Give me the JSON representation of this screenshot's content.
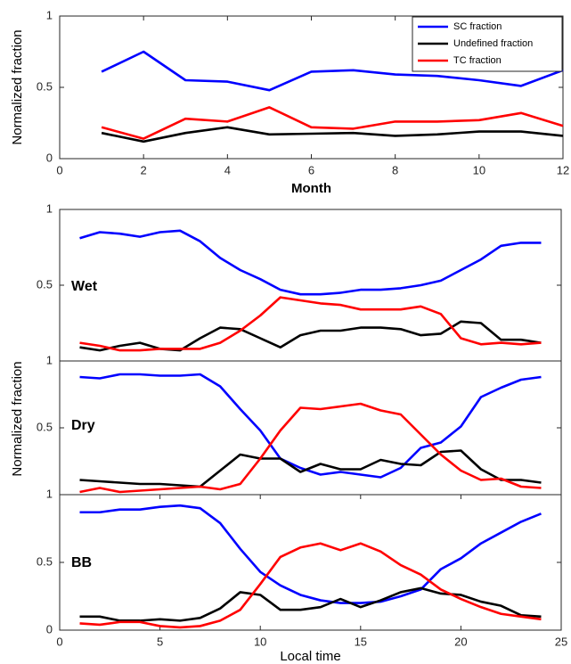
{
  "chart_data": [
    {
      "type": "line",
      "x": [
        1,
        2,
        3,
        4,
        5,
        6,
        7,
        8,
        9,
        10,
        11,
        12
      ],
      "series": [
        {
          "name": "SC fraction",
          "color": "#0000ff",
          "values": [
            0.61,
            0.75,
            0.55,
            0.54,
            0.48,
            0.61,
            0.62,
            0.59,
            0.58,
            0.55,
            0.51,
            0.62
          ]
        },
        {
          "name": "Undefined fraction",
          "color": "#000000",
          "values": [
            0.18,
            0.12,
            0.18,
            0.22,
            0.17,
            0.175,
            0.18,
            0.16,
            0.17,
            0.19,
            0.19,
            0.16
          ]
        },
        {
          "name": "TC fraction",
          "color": "#ff0000",
          "values": [
            0.22,
            0.14,
            0.28,
            0.26,
            0.36,
            0.22,
            0.21,
            0.26,
            0.26,
            0.27,
            0.32,
            0.23
          ]
        }
      ],
      "xlim": [
        0,
        12
      ],
      "xticks": [
        0,
        2,
        4,
        6,
        8,
        10,
        12
      ],
      "ylim": [
        0,
        1
      ],
      "yticks": [
        0,
        0.5,
        1
      ],
      "x_label": "Month",
      "y_label": "Normalized fraction",
      "legend": "upper right"
    },
    {
      "type": "line",
      "annotation": "Wet",
      "x": [
        1,
        2,
        3,
        4,
        5,
        6,
        7,
        8,
        9,
        10,
        11,
        12,
        13,
        14,
        15,
        16,
        17,
        18,
        19,
        20,
        21,
        22,
        23,
        24
      ],
      "series": [
        {
          "color": "#0000ff",
          "values": [
            0.81,
            0.85,
            0.84,
            0.82,
            0.85,
            0.86,
            0.79,
            0.68,
            0.6,
            0.54,
            0.47,
            0.44,
            0.44,
            0.45,
            0.47,
            0.47,
            0.48,
            0.5,
            0.53,
            0.6,
            0.67,
            0.76,
            0.78,
            0.78
          ]
        },
        {
          "color": "#000000",
          "values": [
            0.09,
            0.07,
            0.1,
            0.12,
            0.08,
            0.07,
            0.15,
            0.22,
            0.21,
            0.15,
            0.09,
            0.17,
            0.2,
            0.2,
            0.22,
            0.22,
            0.21,
            0.17,
            0.18,
            0.26,
            0.25,
            0.14,
            0.14,
            0.12
          ]
        },
        {
          "color": "#ff0000",
          "values": [
            0.12,
            0.1,
            0.07,
            0.07,
            0.08,
            0.08,
            0.08,
            0.12,
            0.2,
            0.3,
            0.42,
            0.4,
            0.38,
            0.37,
            0.34,
            0.34,
            0.34,
            0.36,
            0.31,
            0.15,
            0.11,
            0.12,
            0.11,
            0.12
          ]
        }
      ],
      "xlim": [
        0,
        25
      ],
      "ylim": [
        0,
        1
      ],
      "yticks": [
        0.5,
        1
      ]
    },
    {
      "type": "line",
      "annotation": "Dry",
      "x": [
        1,
        2,
        3,
        4,
        5,
        6,
        7,
        8,
        9,
        10,
        11,
        12,
        13,
        14,
        15,
        16,
        17,
        18,
        19,
        20,
        21,
        22,
        23,
        24
      ],
      "series": [
        {
          "color": "#0000ff",
          "values": [
            0.88,
            0.87,
            0.9,
            0.9,
            0.89,
            0.89,
            0.9,
            0.81,
            0.64,
            0.48,
            0.27,
            0.2,
            0.15,
            0.17,
            0.15,
            0.13,
            0.2,
            0.35,
            0.39,
            0.51,
            0.73,
            0.8,
            0.86,
            0.88
          ]
        },
        {
          "color": "#000000",
          "values": [
            0.11,
            0.1,
            0.09,
            0.08,
            0.08,
            0.07,
            0.06,
            0.18,
            0.3,
            0.27,
            0.27,
            0.17,
            0.23,
            0.19,
            0.19,
            0.26,
            0.23,
            0.22,
            0.32,
            0.33,
            0.19,
            0.11,
            0.11,
            0.09
          ]
        },
        {
          "color": "#ff0000",
          "values": [
            0.02,
            0.05,
            0.02,
            0.03,
            0.04,
            0.05,
            0.06,
            0.04,
            0.08,
            0.27,
            0.48,
            0.65,
            0.64,
            0.66,
            0.68,
            0.63,
            0.6,
            0.45,
            0.3,
            0.18,
            0.11,
            0.12,
            0.06,
            0.05
          ]
        }
      ],
      "xlim": [
        0,
        25
      ],
      "ylim": [
        0,
        1
      ],
      "yticks": [
        0.5,
        1
      ],
      "y_label": "Normalized fraction"
    },
    {
      "type": "line",
      "annotation": "BB",
      "x": [
        1,
        2,
        3,
        4,
        5,
        6,
        7,
        8,
        9,
        10,
        11,
        12,
        13,
        14,
        15,
        16,
        17,
        18,
        19,
        20,
        21,
        22,
        23,
        24
      ],
      "series": [
        {
          "color": "#0000ff",
          "values": [
            0.87,
            0.87,
            0.89,
            0.89,
            0.91,
            0.92,
            0.9,
            0.79,
            0.6,
            0.43,
            0.33,
            0.26,
            0.22,
            0.2,
            0.2,
            0.21,
            0.25,
            0.3,
            0.45,
            0.53,
            0.64,
            0.72,
            0.8,
            0.86
          ]
        },
        {
          "color": "#000000",
          "values": [
            0.1,
            0.1,
            0.07,
            0.07,
            0.08,
            0.07,
            0.09,
            0.16,
            0.28,
            0.26,
            0.15,
            0.15,
            0.17,
            0.23,
            0.17,
            0.22,
            0.28,
            0.31,
            0.27,
            0.26,
            0.21,
            0.18,
            0.11,
            0.1
          ]
        },
        {
          "color": "#ff0000",
          "values": [
            0.05,
            0.04,
            0.06,
            0.06,
            0.03,
            0.02,
            0.03,
            0.07,
            0.15,
            0.34,
            0.54,
            0.61,
            0.64,
            0.59,
            0.64,
            0.58,
            0.48,
            0.41,
            0.3,
            0.23,
            0.17,
            0.12,
            0.1,
            0.08
          ]
        }
      ],
      "xlim": [
        0,
        25
      ],
      "xticks": [
        0,
        5,
        10,
        15,
        20,
        25
      ],
      "ylim": [
        0,
        1
      ],
      "yticks": [
        0,
        0.5,
        1
      ],
      "x_label": "Local time"
    }
  ]
}
